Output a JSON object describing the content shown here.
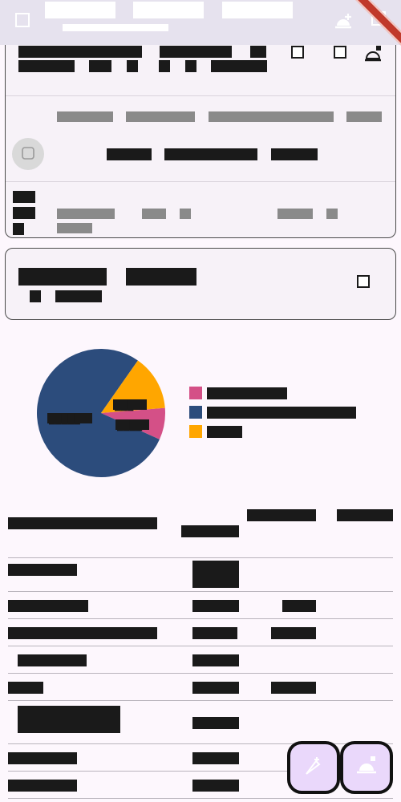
{
  "app": {
    "tabs": [
      "████████",
      "████████",
      "████████"
    ],
    "subtitle": "████████████████"
  },
  "card1": {
    "row1": [
      "████████████",
      "█████████",
      "██"
    ],
    "row2": [
      "██████",
      "██",
      "█",
      "█",
      "█",
      "██████"
    ],
    "gray_line": [
      "██████",
      "███████",
      "█████████████",
      "████"
    ],
    "bold_line": [
      "████",
      "█████████",
      "████"
    ],
    "stack": [
      "██",
      "██",
      "█"
    ],
    "meta_left": [
      "██████",
      "██",
      "█"
    ],
    "meta_right": [
      "███",
      "█",
      "████"
    ]
  },
  "card2": {
    "title": [
      "█████████",
      "██████"
    ],
    "sub": [
      "█",
      "████"
    ]
  },
  "colors": {
    "slice_large": "#2c4c7c",
    "slice_orange": "#ffa600",
    "slice_pink": "#d45087"
  },
  "chart_data": {
    "type": "pie",
    "slices": [
      {
        "label": "████████",
        "value": 8,
        "color": "#d45087"
      },
      {
        "label": "███████████████",
        "value": 78,
        "color": "#2c4c7c"
      },
      {
        "label": "████",
        "value": 14,
        "color": "#ffa600"
      }
    ],
    "data_labels": [
      "█████",
      "███",
      "████"
    ]
  },
  "table": {
    "headers": [
      "███████████████ █",
      "██████",
      "████████ █ ██ ████████",
      "█ ▁██ █████ ██"
    ],
    "rows": [
      {
        "name": "███████",
        "c2": "█████ █████",
        "c3": "",
        "c4": ""
      },
      {
        "name": "████████",
        "c2": "██ █",
        "c3": "███",
        "c4": ""
      },
      {
        "name": "███████████████",
        "c2": "███ █",
        "c3": "████",
        "c4": ""
      },
      {
        "name": "██████",
        "c2": "██ █",
        "c3": "",
        "c4": ""
      },
      {
        "name": "███",
        "c2": "██ █",
        "c3": "████",
        "c4": ""
      },
      {
        "name": "██████████ ███",
        "c2": "██ █",
        "c3": "",
        "c4": ""
      },
      {
        "name": "███████",
        "c2": "██ █",
        "c3": "",
        "c4": ""
      },
      {
        "name": "███████",
        "c2": "██ █",
        "c3": "",
        "c4": ""
      }
    ]
  }
}
